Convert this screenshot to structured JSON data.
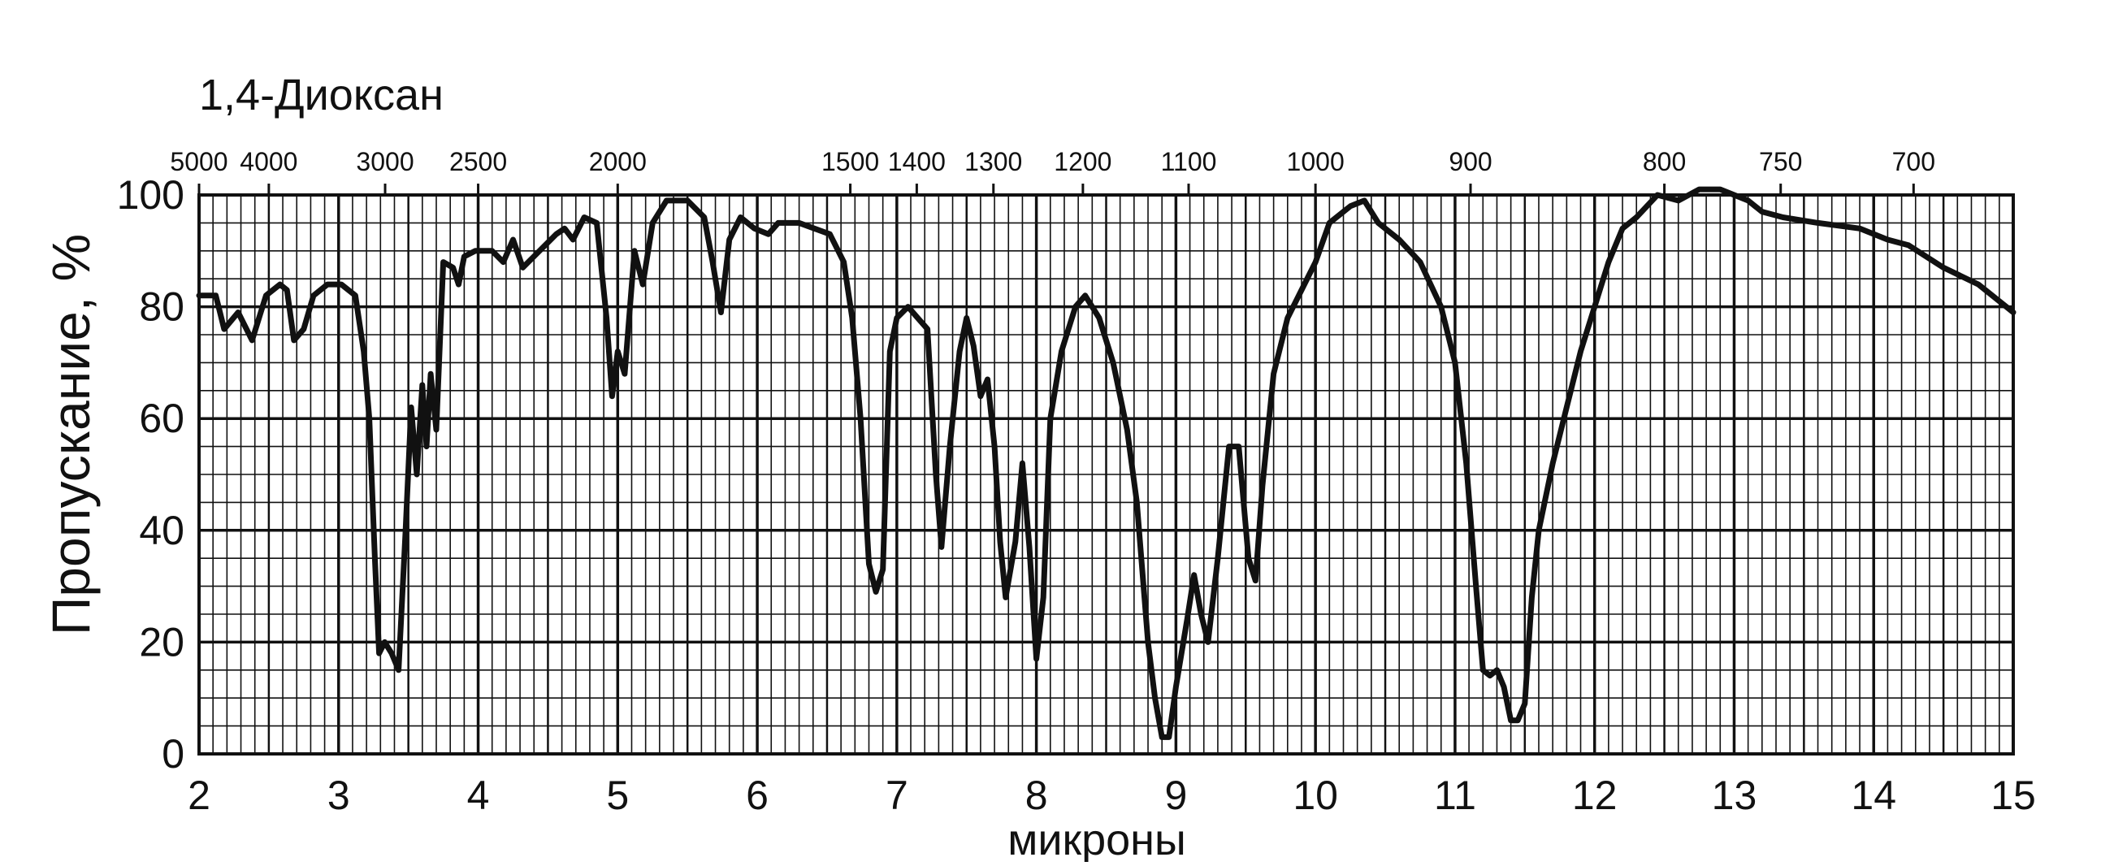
{
  "chart_data": {
    "type": "line",
    "title": "1,4-Диоксан",
    "xlabel": "микроны",
    "ylabel": "Пропускание, %",
    "xlim": [
      2,
      15
    ],
    "ylim": [
      0,
      100
    ],
    "grid": true,
    "x_ticks": [
      2,
      3,
      4,
      5,
      6,
      7,
      8,
      9,
      10,
      11,
      12,
      13,
      14,
      15
    ],
    "y_ticks": [
      0,
      20,
      40,
      60,
      80,
      100
    ],
    "top_axis_unit": "",
    "top_ticks": [
      {
        "label": "5000",
        "wavenumber": 5000
      },
      {
        "label": "4000",
        "wavenumber": 4000
      },
      {
        "label": "3000",
        "wavenumber": 3000
      },
      {
        "label": "2500",
        "wavenumber": 2500
      },
      {
        "label": "2000",
        "wavenumber": 2000
      },
      {
        "label": "1500",
        "wavenumber": 1500
      },
      {
        "label": "1400",
        "wavenumber": 1400
      },
      {
        "label": "1300",
        "wavenumber": 1300
      },
      {
        "label": "1200",
        "wavenumber": 1200
      },
      {
        "label": "1100",
        "wavenumber": 1100
      },
      {
        "label": "1000",
        "wavenumber": 1000
      },
      {
        "label": "900",
        "wavenumber": 900
      },
      {
        "label": "800",
        "wavenumber": 800
      },
      {
        "label": "750",
        "wavenumber": 750
      },
      {
        "label": "700",
        "wavenumber": 700
      }
    ],
    "series": [
      {
        "color": "#111111",
        "points": [
          [
            2.0,
            82
          ],
          [
            2.12,
            82
          ],
          [
            2.18,
            76
          ],
          [
            2.28,
            79
          ],
          [
            2.38,
            74
          ],
          [
            2.48,
            82
          ],
          [
            2.58,
            84
          ],
          [
            2.63,
            83
          ],
          [
            2.68,
            74
          ],
          [
            2.75,
            76
          ],
          [
            2.82,
            82
          ],
          [
            2.92,
            84
          ],
          [
            3.02,
            84
          ],
          [
            3.12,
            82
          ],
          [
            3.18,
            72
          ],
          [
            3.22,
            60
          ],
          [
            3.26,
            35
          ],
          [
            3.29,
            18
          ],
          [
            3.33,
            20
          ],
          [
            3.38,
            18
          ],
          [
            3.43,
            15
          ],
          [
            3.48,
            40
          ],
          [
            3.52,
            62
          ],
          [
            3.56,
            50
          ],
          [
            3.6,
            66
          ],
          [
            3.63,
            55
          ],
          [
            3.66,
            68
          ],
          [
            3.7,
            58
          ],
          [
            3.75,
            88
          ],
          [
            3.82,
            87
          ],
          [
            3.86,
            84
          ],
          [
            3.9,
            89
          ],
          [
            3.98,
            90
          ],
          [
            4.1,
            90
          ],
          [
            4.18,
            88
          ],
          [
            4.25,
            92
          ],
          [
            4.32,
            87
          ],
          [
            4.4,
            89
          ],
          [
            4.48,
            91
          ],
          [
            4.56,
            93
          ],
          [
            4.62,
            94
          ],
          [
            4.68,
            92
          ],
          [
            4.76,
            96
          ],
          [
            4.85,
            95
          ],
          [
            4.92,
            78
          ],
          [
            4.96,
            64
          ],
          [
            5.0,
            72
          ],
          [
            5.05,
            68
          ],
          [
            5.12,
            90
          ],
          [
            5.18,
            84
          ],
          [
            5.25,
            95
          ],
          [
            5.35,
            99
          ],
          [
            5.5,
            99
          ],
          [
            5.62,
            96
          ],
          [
            5.68,
            88
          ],
          [
            5.74,
            79
          ],
          [
            5.8,
            92
          ],
          [
            5.88,
            96
          ],
          [
            5.98,
            94
          ],
          [
            6.08,
            93
          ],
          [
            6.15,
            95
          ],
          [
            6.3,
            95
          ],
          [
            6.52,
            93
          ],
          [
            6.62,
            88
          ],
          [
            6.68,
            78
          ],
          [
            6.74,
            60
          ],
          [
            6.8,
            34
          ],
          [
            6.85,
            29
          ],
          [
            6.9,
            33
          ],
          [
            6.95,
            72
          ],
          [
            7.0,
            78
          ],
          [
            7.08,
            80
          ],
          [
            7.15,
            78
          ],
          [
            7.22,
            76
          ],
          [
            7.28,
            50
          ],
          [
            7.32,
            37
          ],
          [
            7.38,
            55
          ],
          [
            7.45,
            72
          ],
          [
            7.5,
            78
          ],
          [
            7.55,
            73
          ],
          [
            7.6,
            64
          ],
          [
            7.65,
            67
          ],
          [
            7.7,
            55
          ],
          [
            7.74,
            38
          ],
          [
            7.78,
            28
          ],
          [
            7.85,
            38
          ],
          [
            7.9,
            52
          ],
          [
            7.95,
            37
          ],
          [
            8.0,
            17
          ],
          [
            8.05,
            28
          ],
          [
            8.1,
            60
          ],
          [
            8.18,
            72
          ],
          [
            8.28,
            80
          ],
          [
            8.35,
            82
          ],
          [
            8.45,
            78
          ],
          [
            8.55,
            70
          ],
          [
            8.65,
            58
          ],
          [
            8.72,
            45
          ],
          [
            8.8,
            20
          ],
          [
            8.85,
            10
          ],
          [
            8.9,
            3
          ],
          [
            8.95,
            3
          ],
          [
            9.0,
            12
          ],
          [
            9.08,
            24
          ],
          [
            9.13,
            32
          ],
          [
            9.18,
            25
          ],
          [
            9.23,
            20
          ],
          [
            9.3,
            35
          ],
          [
            9.38,
            55
          ],
          [
            9.45,
            55
          ],
          [
            9.52,
            35
          ],
          [
            9.57,
            31
          ],
          [
            9.62,
            48
          ],
          [
            9.7,
            68
          ],
          [
            9.8,
            78
          ],
          [
            9.9,
            83
          ],
          [
            10.0,
            88
          ],
          [
            10.1,
            95
          ],
          [
            10.25,
            98
          ],
          [
            10.35,
            99
          ],
          [
            10.45,
            95
          ],
          [
            10.6,
            92
          ],
          [
            10.75,
            88
          ],
          [
            10.9,
            80
          ],
          [
            11.0,
            70
          ],
          [
            11.08,
            52
          ],
          [
            11.15,
            30
          ],
          [
            11.2,
            15
          ],
          [
            11.25,
            14
          ],
          [
            11.3,
            15
          ],
          [
            11.35,
            12
          ],
          [
            11.4,
            6
          ],
          [
            11.45,
            6
          ],
          [
            11.5,
            9
          ],
          [
            11.55,
            28
          ],
          [
            11.6,
            40
          ],
          [
            11.7,
            52
          ],
          [
            11.8,
            62
          ],
          [
            11.9,
            72
          ],
          [
            12.0,
            80
          ],
          [
            12.1,
            88
          ],
          [
            12.2,
            94
          ],
          [
            12.3,
            96
          ],
          [
            12.45,
            100
          ],
          [
            12.6,
            99
          ],
          [
            12.75,
            101
          ],
          [
            12.9,
            101
          ],
          [
            13.0,
            100
          ],
          [
            13.1,
            99
          ],
          [
            13.2,
            97
          ],
          [
            13.35,
            96
          ],
          [
            13.6,
            95
          ],
          [
            13.9,
            94
          ],
          [
            14.1,
            92
          ],
          [
            14.25,
            91
          ],
          [
            14.5,
            87
          ],
          [
            14.75,
            84
          ],
          [
            15.0,
            79
          ]
        ]
      }
    ]
  }
}
